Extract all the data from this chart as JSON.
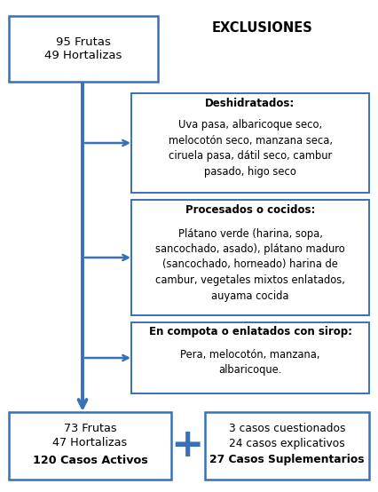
{
  "title_box": "95 Frutas\n49 Hortalizas",
  "exclusiones_label": "EXCLUSIONES",
  "box1_title": "Deshidratados:",
  "box1_text": "Uva pasa, albaricoque seco,\nmelocotón seco, manzana seca,\nciruela pasa, dátil seco, cambur\npasado, higo seco",
  "box2_title": "Procesados o cocidos:",
  "box2_text": "Plátano verde (harina, sopa,\nsancochado, asado), plátano maduro\n(sancochado, horneado) harina de\ncambur, vegetales mixtos enlatados,\nauyama cocida",
  "box3_title": "En compota o enlatados con sirop:",
  "box3_text": "Pera, melocotón, manzana,\nalbaricoque.",
  "bottom_left_line1": "73 Frutas",
  "bottom_left_line2": "47 Hortalizas",
  "bottom_left_line3": "120 Casos Activos",
  "bottom_right_line1": "3 casos cuestionados",
  "bottom_right_line2": "24 casos explicativos",
  "bottom_right_line3": "27 Casos Suplementarios",
  "plus_symbol": "+",
  "arrow_color": "#3771b8",
  "box_edge_color": "#3771b8",
  "bg_color": "#ffffff",
  "text_color": "#000000"
}
